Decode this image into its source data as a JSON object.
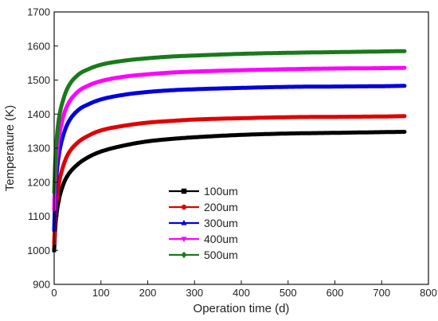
{
  "chart_data": {
    "type": "line",
    "xlabel": "Operation time (d)",
    "ylabel": "Temperature (K)",
    "xlim": [
      0,
      800
    ],
    "ylim": [
      900,
      1700
    ],
    "xticks": [
      0,
      100,
      200,
      300,
      400,
      500,
      600,
      700,
      800
    ],
    "yticks": [
      900,
      1000,
      1100,
      1200,
      1300,
      1400,
      1500,
      1600,
      1700
    ],
    "grid": false,
    "legend_position": "center-left",
    "x": [
      0,
      2,
      5,
      10,
      20,
      30,
      50,
      75,
      100,
      150,
      200,
      250,
      300,
      400,
      500,
      600,
      700,
      750
    ],
    "series": [
      {
        "name": "100um",
        "color": "#000000",
        "marker": "square",
        "values": [
          1000,
          1060,
          1105,
          1148,
          1195,
          1222,
          1252,
          1275,
          1290,
          1308,
          1320,
          1327,
          1332,
          1339,
          1343,
          1345,
          1347,
          1348
        ]
      },
      {
        "name": "200um",
        "color": "#e00000",
        "marker": "circle",
        "values": [
          1020,
          1090,
          1145,
          1195,
          1250,
          1283,
          1316,
          1338,
          1352,
          1366,
          1375,
          1380,
          1384,
          1388,
          1391,
          1392,
          1393,
          1394
        ]
      },
      {
        "name": "300um",
        "color": "#0000e0",
        "marker": "triangle-up",
        "values": [
          1060,
          1150,
          1220,
          1280,
          1340,
          1375,
          1410,
          1430,
          1443,
          1457,
          1465,
          1470,
          1473,
          1477,
          1480,
          1481,
          1482,
          1483
        ]
      },
      {
        "name": "400um",
        "color": "#ff00ff",
        "marker": "triangle-down",
        "values": [
          1120,
          1200,
          1270,
          1330,
          1395,
          1430,
          1465,
          1485,
          1497,
          1510,
          1517,
          1522,
          1525,
          1529,
          1532,
          1534,
          1535,
          1536
        ]
      },
      {
        "name": "500um",
        "color": "#1a7a1a",
        "marker": "diamond",
        "values": [
          1170,
          1250,
          1320,
          1385,
          1445,
          1480,
          1514,
          1533,
          1545,
          1557,
          1564,
          1569,
          1572,
          1577,
          1580,
          1582,
          1584,
          1585
        ]
      }
    ]
  }
}
